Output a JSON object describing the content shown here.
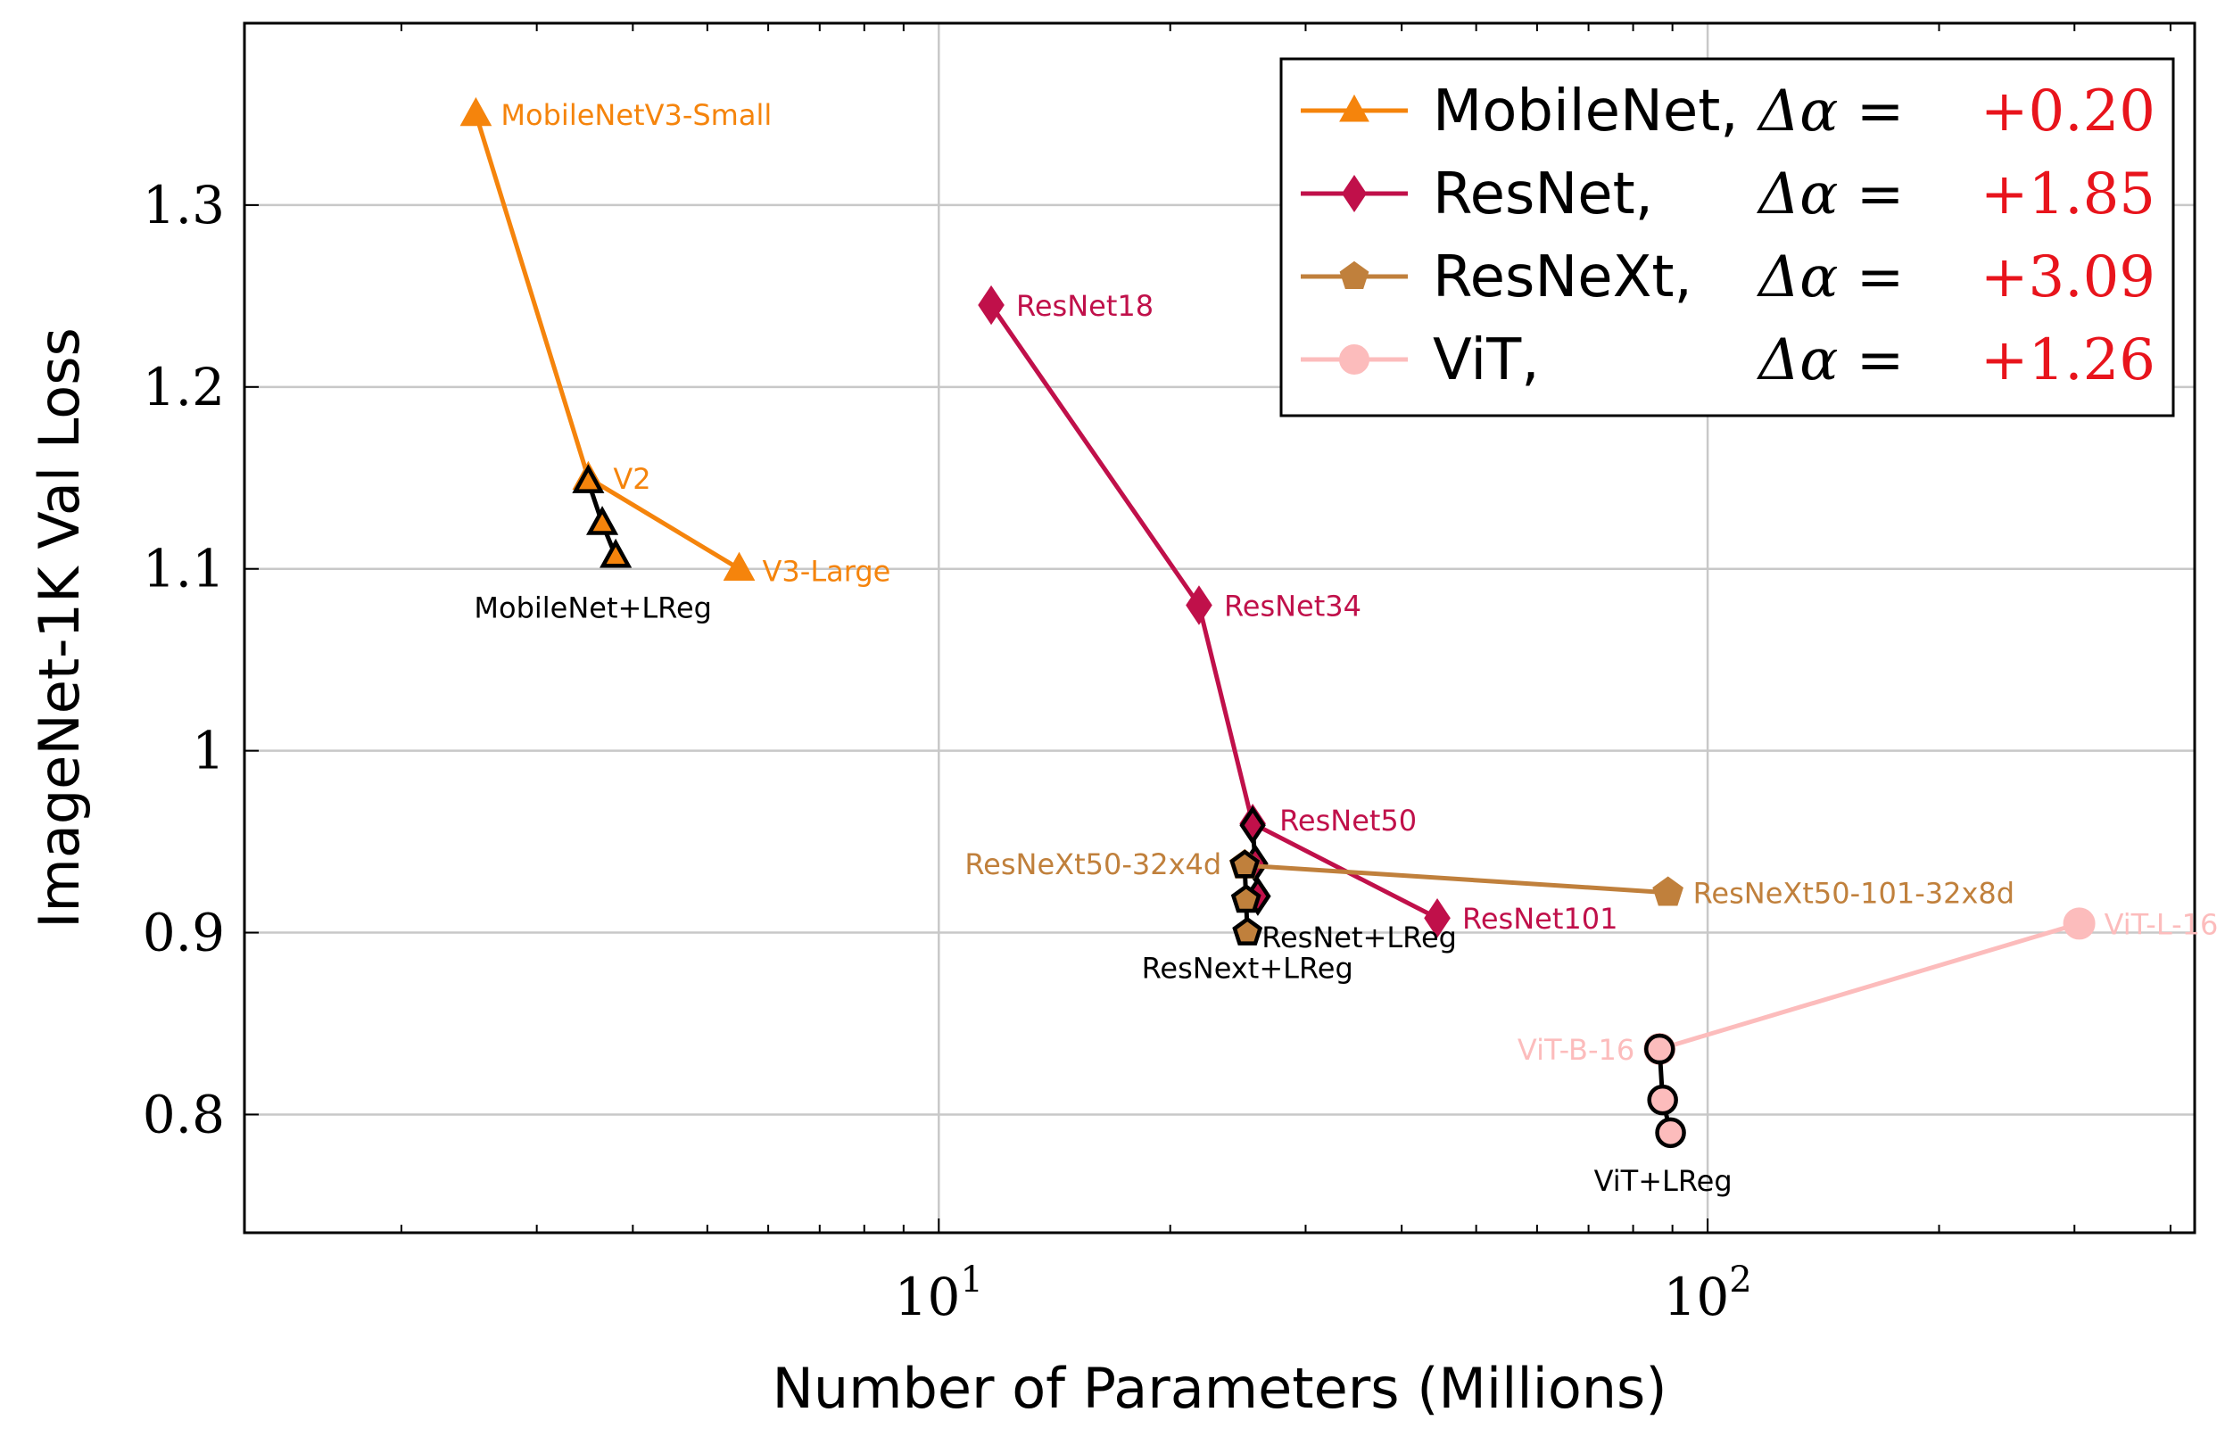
{
  "chart_data": {
    "type": "scatter",
    "xlabel": "Number of Parameters (Millions)",
    "ylabel": "ImageNet-1K Val Loss",
    "x_scale": "log",
    "xlim": [
      1.25,
      430
    ],
    "ylim": [
      0.735,
      1.4
    ],
    "x_ticks": [
      {
        "value": 10,
        "base": "10",
        "exp": "1"
      },
      {
        "value": 100,
        "base": "10",
        "exp": "2"
      }
    ],
    "y_ticks": [
      {
        "value": 0.8,
        "label": "0.8"
      },
      {
        "value": 0.9,
        "label": "0.9"
      },
      {
        "value": 1.0,
        "label": "1"
      },
      {
        "value": 1.1,
        "label": "1.1"
      },
      {
        "value": 1.2,
        "label": "1.2"
      },
      {
        "value": 1.3,
        "label": "1.3"
      }
    ],
    "grid": true,
    "legend_position": "top-right",
    "series": [
      {
        "name": "MobileNet,",
        "delta_label": "Δα =",
        "delta_value": "+0.20",
        "color": "#f5840c",
        "marker": "triangle",
        "points": [
          {
            "x": 2.5,
            "y": 1.35,
            "label": "MobileNetV3-Small"
          },
          {
            "x": 3.5,
            "y": 1.15,
            "label": "V2"
          },
          {
            "x": 5.5,
            "y": 1.1,
            "label": "V3-Large"
          }
        ],
        "lreg_points": [
          {
            "x": 3.5,
            "y": 1.148
          },
          {
            "x": 3.65,
            "y": 1.125
          },
          {
            "x": 3.8,
            "y": 1.107
          }
        ],
        "lreg_label": "MobileNet+LReg"
      },
      {
        "name": "ResNet,",
        "delta_label": "Δα =",
        "delta_value": "+1.85",
        "color": "#c0104a",
        "marker": "diamond",
        "points": [
          {
            "x": 11.7,
            "y": 1.245,
            "label": "ResNet18"
          },
          {
            "x": 21.8,
            "y": 1.08,
            "label": "ResNet34"
          },
          {
            "x": 25.6,
            "y": 0.96,
            "label": "ResNet50"
          },
          {
            "x": 44.5,
            "y": 0.908,
            "label": "ResNet101"
          }
        ],
        "lreg_points": [
          {
            "x": 25.6,
            "y": 0.959
          },
          {
            "x": 25.8,
            "y": 0.938
          },
          {
            "x": 26.0,
            "y": 0.92
          }
        ],
        "lreg_label": "ResNet+LReg"
      },
      {
        "name": "ResNeXt,",
        "delta_label": "Δα =",
        "delta_value": "+3.09",
        "color": "#c0803c",
        "marker": "pentagon",
        "points": [
          {
            "x": 25.0,
            "y": 0.937,
            "label": "ResNeXt50-32x4d"
          },
          {
            "x": 88.8,
            "y": 0.922,
            "label": "ResNeXt50-101-32x8d"
          }
        ],
        "lreg_points": [
          {
            "x": 25.0,
            "y": 0.937
          },
          {
            "x": 25.1,
            "y": 0.918
          },
          {
            "x": 25.2,
            "y": 0.9
          }
        ],
        "lreg_label": "ResNext+LReg"
      },
      {
        "name": "ViT,",
        "delta_label": "Δα =",
        "delta_value": "+1.26",
        "color": "#fcbcbc",
        "marker": "circle",
        "points": [
          {
            "x": 86.6,
            "y": 0.836,
            "label": "ViT-B-16"
          },
          {
            "x": 304.3,
            "y": 0.905,
            "label": "ViT-L-16"
          }
        ],
        "lreg_points": [
          {
            "x": 86.6,
            "y": 0.836
          },
          {
            "x": 87.4,
            "y": 0.808
          },
          {
            "x": 89.5,
            "y": 0.79
          }
        ],
        "lreg_label": "ViT+LReg"
      }
    ]
  }
}
